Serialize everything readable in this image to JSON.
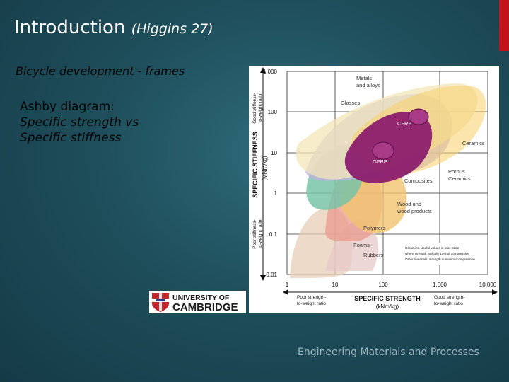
{
  "slide": {
    "title": "Introduction",
    "title_citation": "(Higgins 27)",
    "subtitle": "Bicycle development - frames",
    "body_line1": "Ashby diagram:",
    "body_line2": "Specific strength vs",
    "body_line3": "Specific stiffness",
    "footer": "Engineering Materials and Processes",
    "accent_color": "#c0141b"
  },
  "logo": {
    "line1": "UNIVERSITY OF",
    "line2": "CAMBRIDGE"
  },
  "ashby": {
    "y_ticks": [
      "1,000",
      "100",
      "10",
      "1",
      "0.1",
      "0.01"
    ],
    "x_ticks": [
      "1",
      "10",
      "100",
      "1,000",
      "10,000"
    ],
    "y_axis_title": "SPECIFIC STIFFNESS",
    "y_axis_unit": "(MNm/kg)",
    "y_good_1": "Good stiffness-",
    "y_good_2": "to-weight ratio",
    "y_poor_1": "Poor stiffness-",
    "y_poor_2": "to-weight ratio",
    "x_axis_title": "SPECIFIC STRENGTH",
    "x_axis_unit": "(kNm/kg)",
    "x_poor_1": "Poor strength-",
    "x_poor_2": "to-weight ratio",
    "x_good_1": "Good strength-",
    "x_good_2": "to-weight ratio",
    "regions": {
      "metals": [
        "Metals",
        "and alloys"
      ],
      "glasses": "Glasses",
      "ceramics": "Ceramics",
      "cfrp": "CFRP",
      "gfrp": "GFRP",
      "composites": "Composites",
      "porous": [
        "Porous",
        "Ceramics"
      ],
      "wood": [
        "Wood and",
        "wood products"
      ],
      "polymers": "Polymers",
      "foams": "Foams",
      "rubbers": "Rubbers"
    },
    "note_line1": "Ceramics: Useful values in pure-state",
    "note_line2": "where strength typically 10% of compressive",
    "note_line3": "Other materials: strength in tension/compression"
  }
}
